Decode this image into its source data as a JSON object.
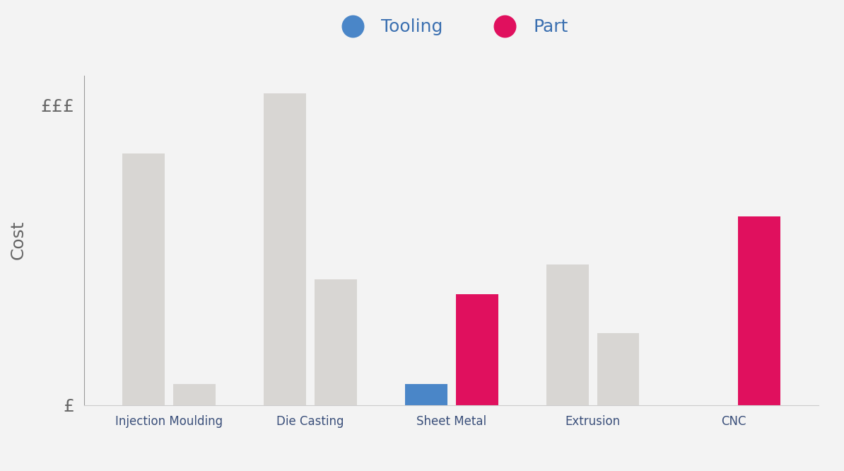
{
  "chart_data": {
    "type": "bar",
    "y_label": "Cost",
    "categories": [
      "Injection Moulding",
      "Die Casting",
      "Sheet Metal",
      "Extrusion",
      "CNC"
    ],
    "series": [
      {
        "name": "Tooling",
        "color": "#4a86c8",
        "values": [
          8.4,
          10.4,
          0.7,
          4.7,
          null
        ],
        "colors": [
          "#d8d6d3",
          "#d8d6d3",
          "#4a86c8",
          "#d8d6d3",
          null
        ]
      },
      {
        "name": "Part",
        "color": "#e0105e",
        "values": [
          0.7,
          4.2,
          3.7,
          2.4,
          6.3
        ],
        "colors": [
          "#d8d6d3",
          "#d8d6d3",
          "#e0105e",
          "#d8d6d3",
          "#e0105e"
        ]
      }
    ],
    "ylim": [
      0,
      11
    ],
    "yticks": [
      {
        "value": 0,
        "label": "£"
      },
      {
        "value": 10,
        "label": "£££"
      }
    ],
    "legend": "upper center",
    "grid": false
  }
}
